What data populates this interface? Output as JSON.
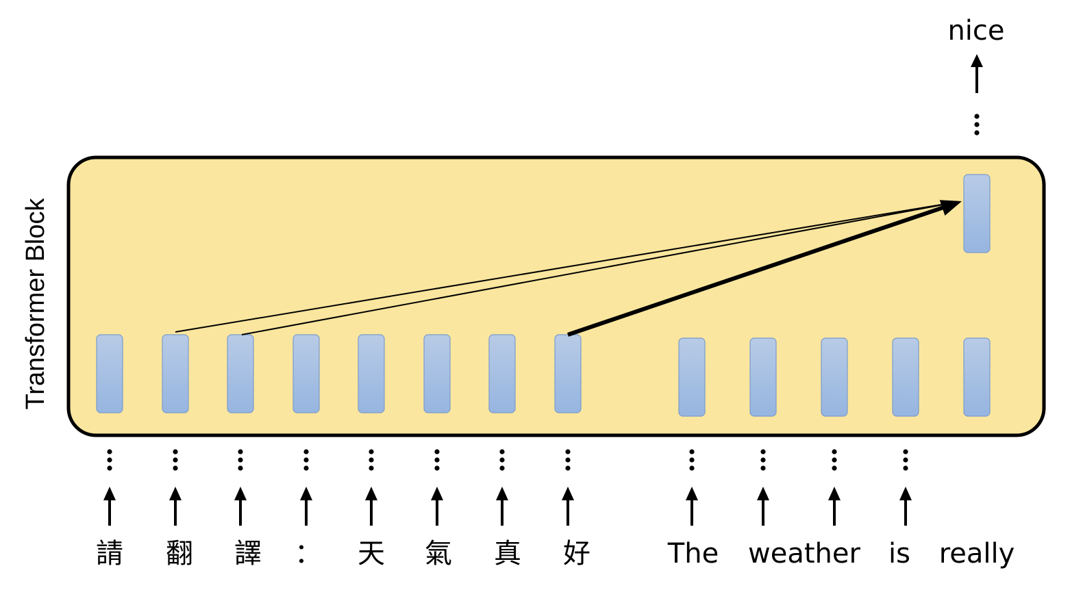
{
  "block_label": "Transformer Block",
  "output_token": "nice",
  "input_tokens": [
    "請",
    "翻",
    "譯",
    "：",
    "天",
    "氣",
    "真",
    "好",
    "The",
    "weather",
    "is",
    "really"
  ],
  "colors": {
    "block_fill": "#fae69e",
    "block_stroke": "#000000",
    "vector_top": "#b8cbe6",
    "vector_bottom": "#96b5e0",
    "vector_stroke": "#7a9bcc",
    "arrow": "#000000"
  },
  "attention_edges": [
    {
      "from_token": "翻",
      "weight": "thin"
    },
    {
      "from_token": "譯",
      "weight": "thin"
    },
    {
      "from_token": "好",
      "weight": "thick"
    }
  ]
}
